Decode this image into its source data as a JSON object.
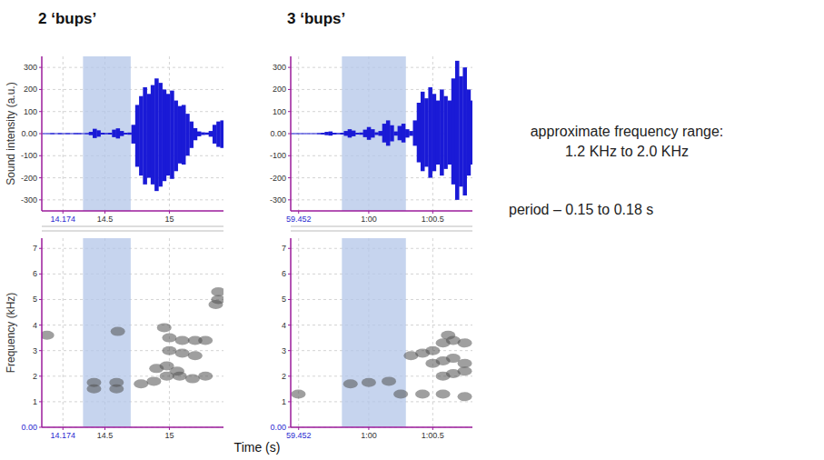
{
  "chart_data": [
    {
      "type": "area",
      "title": "2 ‘bups’",
      "ylabel": "Sound intensity (a.u.)",
      "color": "#1a1ad6",
      "grid": true,
      "xlim": [
        14.01,
        15.42
      ],
      "xticks": [
        14.174,
        14.5,
        15
      ],
      "ylim": [
        -350,
        350
      ],
      "yticks": [
        -300,
        -200,
        -100,
        {
          "value": 0,
          "label": "0.00"
        },
        100,
        200,
        300
      ],
      "highlight": [
        14.33,
        14.7
      ],
      "x": [
        14.03,
        14.06,
        14.09,
        14.12,
        14.15,
        14.18,
        14.21,
        14.24,
        14.27,
        14.3,
        14.33,
        14.36,
        14.39,
        14.42,
        14.45,
        14.48,
        14.51,
        14.54,
        14.57,
        14.6,
        14.63,
        14.66,
        14.69,
        14.72,
        14.75,
        14.78,
        14.81,
        14.84,
        14.87,
        14.9,
        14.93,
        14.96,
        14.99,
        15.02,
        15.05,
        15.08,
        15.11,
        15.14,
        15.17,
        15.2,
        15.23,
        15.26,
        15.29,
        15.32,
        15.35,
        15.38,
        15.41
      ],
      "values": [
        2,
        2,
        3,
        2,
        3,
        2,
        3,
        2,
        3,
        3,
        2,
        3,
        8,
        22,
        15,
        4,
        3,
        4,
        18,
        24,
        12,
        4,
        5,
        40,
        130,
        170,
        210,
        180,
        220,
        250,
        230,
        200,
        180,
        195,
        150,
        125,
        130,
        90,
        55,
        25,
        10,
        6,
        5,
        12,
        40,
        55,
        60
      ],
      "lower": [
        -2,
        -2,
        -3,
        -2,
        -3,
        -2,
        -3,
        -2,
        -3,
        -3,
        -2,
        -3,
        -7,
        -20,
        -14,
        -4,
        -3,
        -4,
        -16,
        -22,
        -11,
        -4,
        -5,
        -45,
        -150,
        -190,
        -230,
        -200,
        -230,
        -260,
        -240,
        -215,
        -190,
        -205,
        -170,
        -135,
        -140,
        -100,
        -65,
        -30,
        -12,
        -6,
        -5,
        -14,
        -45,
        -60,
        -65
      ]
    },
    {
      "type": "scatter",
      "ylabel": "Frequency (kHz)",
      "color": "#505050",
      "marker": "blob",
      "grid": true,
      "xlim": [
        14.01,
        15.42
      ],
      "xticks": [
        14.174,
        14.5,
        15
      ],
      "ylim": [
        0,
        7.4
      ],
      "yticks": [
        {
          "value": 0,
          "label": "0.00"
        },
        1,
        2,
        3,
        4,
        5,
        6,
        7
      ],
      "highlight": [
        14.33,
        14.7
      ],
      "x": [
        14.05,
        14.415,
        14.415,
        14.59,
        14.59,
        14.6,
        14.78,
        14.88,
        14.98,
        15.08,
        15.18,
        14.9,
        14.98,
        15.06,
        15.0,
        15.1,
        15.2,
        15.0,
        15.1,
        15.2,
        14.96,
        15.38,
        15.38,
        15.36,
        15.28,
        15.28
      ],
      "values": [
        3.6,
        1.75,
        1.5,
        1.75,
        1.5,
        3.75,
        1.7,
        1.8,
        2.0,
        2.0,
        1.9,
        2.3,
        2.4,
        2.2,
        3.5,
        3.4,
        3.4,
        3.0,
        2.9,
        2.8,
        3.9,
        5.0,
        5.3,
        4.8,
        3.4,
        2.0
      ]
    },
    {
      "type": "area",
      "title": "3 ‘bups’",
      "color": "#1a1ad6",
      "grid": true,
      "xlim": [
        59.39,
        60.81
      ],
      "xticks": [
        59.452,
        {
          "value": 60,
          "label": "1:00"
        },
        {
          "value": 60.5,
          "label": "1:00.5"
        }
      ],
      "ylim": [
        -350,
        350
      ],
      "yticks": [
        -300,
        -200,
        -100,
        {
          "value": 0,
          "label": "0.00"
        },
        100,
        200,
        300
      ],
      "highlight": [
        59.79,
        60.29
      ],
      "x": [
        59.4,
        59.43,
        59.46,
        59.49,
        59.52,
        59.55,
        59.58,
        59.61,
        59.64,
        59.67,
        59.7,
        59.73,
        59.76,
        59.79,
        59.82,
        59.85,
        59.88,
        59.91,
        59.94,
        59.97,
        60.0,
        60.03,
        60.06,
        60.09,
        60.12,
        60.15,
        60.18,
        60.21,
        60.24,
        60.27,
        60.3,
        60.33,
        60.36,
        60.39,
        60.42,
        60.45,
        60.48,
        60.51,
        60.54,
        60.57,
        60.6,
        60.63,
        60.66,
        60.69,
        60.72,
        60.75,
        60.78,
        60.81
      ],
      "values": [
        2,
        2,
        2,
        2,
        2,
        2,
        2,
        3,
        4,
        8,
        10,
        4,
        3,
        4,
        12,
        20,
        14,
        4,
        5,
        18,
        30,
        20,
        6,
        12,
        45,
        60,
        38,
        10,
        35,
        45,
        20,
        12,
        60,
        140,
        190,
        160,
        210,
        180,
        150,
        200,
        170,
        150,
        250,
        330,
        260,
        300,
        200,
        150
      ],
      "lower": [
        -2,
        -2,
        -2,
        -2,
        -2,
        -2,
        -2,
        -3,
        -4,
        -7,
        -9,
        -4,
        -3,
        -4,
        -10,
        -18,
        -12,
        -4,
        -5,
        -16,
        -28,
        -18,
        -6,
        -10,
        -40,
        -55,
        -35,
        -9,
        -30,
        -40,
        -18,
        -10,
        -55,
        -130,
        -170,
        -150,
        -200,
        -170,
        -140,
        -190,
        -160,
        -140,
        -230,
        -300,
        -240,
        -280,
        -190,
        -140
      ]
    },
    {
      "type": "scatter",
      "color": "#505050",
      "marker": "blob",
      "grid": true,
      "xlim": [
        59.39,
        60.81
      ],
      "xticks": [
        59.452,
        {
          "value": 60,
          "label": "1:00"
        },
        {
          "value": 60.5,
          "label": "1:00.5"
        }
      ],
      "ylim": [
        0,
        7.4
      ],
      "yticks": [
        {
          "value": 0,
          "label": "0.00"
        },
        1,
        2,
        3,
        4,
        5,
        6,
        7
      ],
      "highlight": [
        59.79,
        60.29
      ],
      "x": [
        59.857,
        60.0,
        60.157,
        60.25,
        59.45,
        60.33,
        60.42,
        60.5,
        60.58,
        60.66,
        60.75,
        60.5,
        60.58,
        60.66,
        60.75,
        60.58,
        60.66,
        60.75,
        60.42,
        60.58,
        60.75,
        60.62
      ],
      "values": [
        1.7,
        1.75,
        1.8,
        1.3,
        1.3,
        2.8,
        2.9,
        3.0,
        3.3,
        3.4,
        3.3,
        2.5,
        2.6,
        2.7,
        2.5,
        2.0,
        2.1,
        2.2,
        1.3,
        1.3,
        1.2,
        3.6
      ]
    }
  ],
  "figure": {
    "xlabel": "Time (s)",
    "annotations": [
      "approximate frequency range:",
      "1.2 KHz to 2.0 KHz",
      "period – 0.15 to 0.18 s"
    ]
  }
}
